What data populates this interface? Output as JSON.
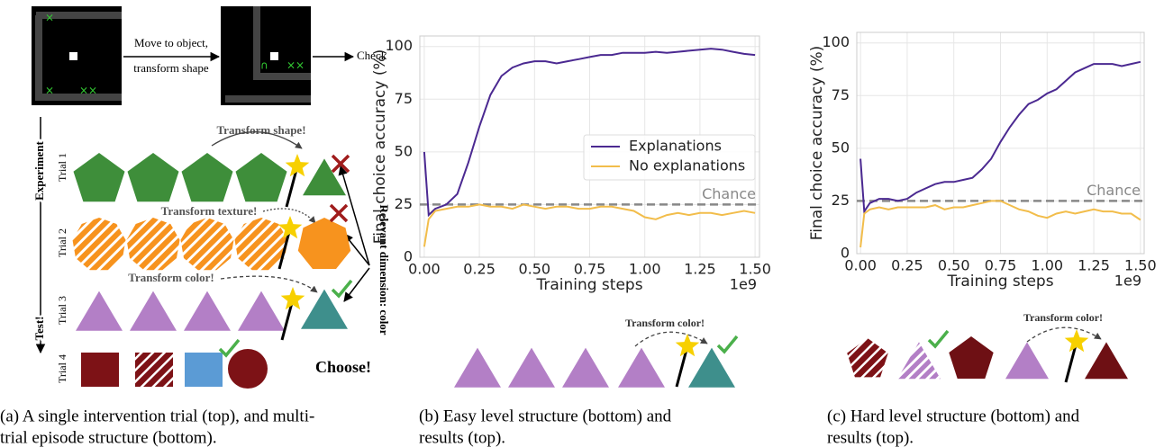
{
  "panel_a": {
    "action_line1": "Move to object,",
    "action_line2": "transform shape",
    "check": "Check",
    "experiment": "Experiment",
    "test": "Test!",
    "trials": [
      "Trial 1",
      "Trial 2",
      "Trial 3",
      "Trial 4"
    ],
    "transforms": [
      "Transform shape!",
      "Transform texture!",
      "Transform color!"
    ],
    "relevant": "Relevant dimension: color",
    "choose": "Choose!",
    "caption": [
      "(a) A single intervention trial (top), and multi-",
      "trial episode structure (bottom)."
    ]
  },
  "panel_b": {
    "transform": "Transform color!",
    "caption": [
      "(b) Easy level structure (bottom) and",
      "results (top)."
    ]
  },
  "panel_c": {
    "transform": "Transform color!",
    "caption": [
      "(c) Hard level structure (bottom) and",
      "results (top)."
    ]
  },
  "chart_data": [
    {
      "type": "line",
      "xlabel": "Training steps",
      "ylabel": "Final choice accuracy (%)",
      "x_offset_label": "1e9",
      "x": [
        0,
        0.02,
        0.05,
        0.1,
        0.15,
        0.2,
        0.25,
        0.3,
        0.35,
        0.4,
        0.45,
        0.5,
        0.55,
        0.6,
        0.65,
        0.7,
        0.75,
        0.8,
        0.85,
        0.9,
        0.95,
        1.0,
        1.05,
        1.1,
        1.15,
        1.2,
        1.25,
        1.3,
        1.35,
        1.4,
        1.45,
        1.5
      ],
      "series": [
        {
          "name": "Explanations",
          "color": "#4b2991",
          "values": [
            50,
            20,
            23,
            25,
            30,
            45,
            62,
            77,
            86,
            90,
            92,
            93,
            93,
            92,
            93,
            94,
            95,
            96,
            96,
            97,
            97,
            97,
            97.5,
            97,
            97.5,
            98,
            98.5,
            99,
            98.5,
            97.5,
            96.5,
            96
          ]
        },
        {
          "name": "No explanations",
          "color": "#f2bd4b",
          "values": [
            5,
            18,
            22,
            23,
            24,
            24,
            25,
            24,
            24,
            23,
            25,
            24,
            23,
            24,
            24,
            23,
            23,
            24,
            24,
            23,
            22,
            19,
            18,
            20,
            21,
            20,
            21,
            21,
            20,
            21,
            22,
            21
          ]
        }
      ],
      "chance": {
        "value": 25,
        "label": "Chance"
      },
      "xlim": [
        -0.02,
        1.52
      ],
      "ylim": [
        0,
        105
      ],
      "xticks": [
        {
          "value": 0,
          "label": "0.00"
        },
        {
          "value": 0.25,
          "label": "0.25"
        },
        {
          "value": 0.5,
          "label": "0.50"
        },
        {
          "value": 0.75,
          "label": "0.75"
        },
        {
          "value": 1,
          "label": "1.00"
        },
        {
          "value": 1.25,
          "label": "1.25"
        },
        {
          "value": 1.5,
          "label": "1.50"
        }
      ],
      "yticks": [
        0,
        25,
        50,
        75,
        100
      ],
      "grid": true,
      "legend": "center right"
    },
    {
      "type": "line",
      "xlabel": "Training steps",
      "ylabel": "Final choice accuracy (%)",
      "x_offset_label": "1e9",
      "x": [
        0,
        0.02,
        0.05,
        0.1,
        0.15,
        0.2,
        0.25,
        0.3,
        0.35,
        0.4,
        0.45,
        0.5,
        0.55,
        0.6,
        0.65,
        0.7,
        0.75,
        0.8,
        0.85,
        0.9,
        0.95,
        1.0,
        1.05,
        1.1,
        1.15,
        1.2,
        1.25,
        1.3,
        1.35,
        1.4,
        1.45,
        1.5
      ],
      "series": [
        {
          "name": "Explanations",
          "color": "#4b2991",
          "values": [
            45,
            20,
            24,
            26,
            26,
            25,
            26,
            29,
            31,
            33,
            34,
            34,
            35,
            36,
            40,
            45,
            53,
            60,
            66,
            71,
            73,
            76,
            78,
            82,
            86,
            88,
            90,
            90,
            90,
            89,
            90,
            91
          ]
        },
        {
          "name": "No explanations",
          "color": "#f2bd4b",
          "values": [
            3,
            19,
            21,
            22,
            21,
            22,
            22,
            22,
            22,
            23,
            21,
            22,
            22,
            23,
            24,
            25,
            25,
            23,
            21,
            20,
            18,
            17,
            19,
            20,
            19,
            20,
            21,
            20,
            20,
            19,
            19,
            16
          ]
        }
      ],
      "chance": {
        "value": 25,
        "label": "Chance"
      },
      "xlim": [
        -0.02,
        1.52
      ],
      "ylim": [
        0,
        105
      ],
      "xticks": [
        {
          "value": 0,
          "label": "0.00"
        },
        {
          "value": 0.25,
          "label": "0.25"
        },
        {
          "value": 0.5,
          "label": "0.50"
        },
        {
          "value": 0.75,
          "label": "0.75"
        },
        {
          "value": 1,
          "label": "1.00"
        },
        {
          "value": 1.25,
          "label": "1.25"
        },
        {
          "value": 1.5,
          "label": "1.50"
        }
      ],
      "yticks": [
        0,
        25,
        50,
        75,
        100
      ],
      "grid": true
    }
  ]
}
